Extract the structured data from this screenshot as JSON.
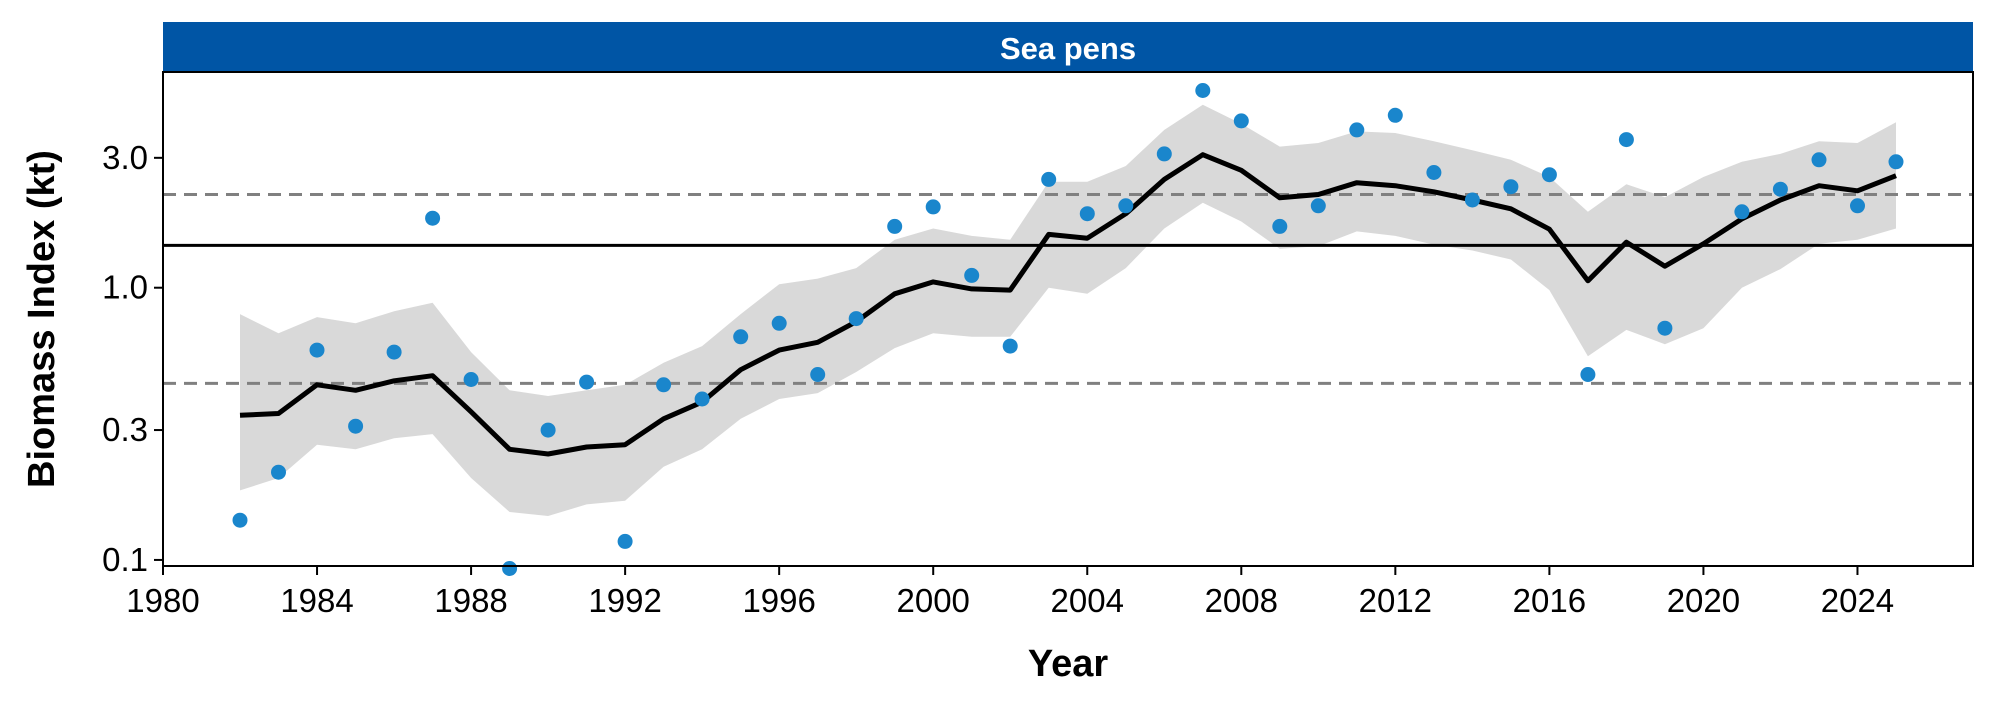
{
  "chart_data": {
    "type": "line",
    "title": "Sea pens",
    "xlabel": "Year",
    "ylabel": "Biomass Index (kt)",
    "y_scale": "log",
    "xlim": [
      1980,
      2027
    ],
    "ylim": [
      0.095,
      6.2
    ],
    "x_ticks": [
      1980,
      1984,
      1988,
      1992,
      1996,
      2000,
      2004,
      2008,
      2012,
      2016,
      2020,
      2024
    ],
    "y_ticks": [
      0.1,
      0.3,
      1.0,
      3.0
    ],
    "y_tick_labels": [
      "0.1",
      "0.3",
      "1.0",
      "3.0"
    ],
    "grid": false,
    "colors": {
      "strip": "#0055A5",
      "points": "#1A86CC",
      "trend": "#000000",
      "ribbon": "#D9D9D9",
      "reference_dashed": "#808080"
    },
    "reference_lines": {
      "solid": 1.43,
      "dashed_upper": 2.2,
      "dashed_lower": 0.445
    },
    "series": [
      {
        "kind": "points",
        "x": [
          1982,
          1983,
          1984,
          1985,
          1986,
          1987,
          1988,
          1989,
          1990,
          1991,
          1992,
          1993,
          1994,
          1995,
          1996,
          1997,
          1998,
          1999,
          2000,
          2001,
          2002,
          2003,
          2004,
          2005,
          2006,
          2007,
          2008,
          2009,
          2010,
          2011,
          2012,
          2013,
          2014,
          2015,
          2016,
          2017,
          2018,
          2019,
          2020,
          2021,
          2022,
          2023,
          2024,
          2025
        ],
        "y": [
          0.14,
          0.21,
          0.59,
          0.31,
          0.58,
          1.8,
          0.46,
          0.093,
          0.3,
          0.45,
          0.117,
          0.44,
          0.39,
          0.66,
          0.74,
          0.48,
          0.77,
          1.68,
          1.98,
          1.11,
          0.61,
          2.5,
          1.87,
          2.0,
          3.1,
          5.3,
          4.1,
          1.68,
          2.0,
          3.8,
          4.3,
          2.65,
          2.1,
          2.35,
          2.6,
          0.48,
          3.5,
          0.71,
          null,
          1.9,
          2.3,
          2.95,
          2.0,
          2.9
        ]
      },
      {
        "kind": "trend",
        "x": [
          1982,
          1983,
          1984,
          1985,
          1986,
          1987,
          1988,
          1989,
          1990,
          1991,
          1992,
          1993,
          1994,
          1995,
          1996,
          1997,
          1998,
          1999,
          2000,
          2001,
          2002,
          2003,
          2004,
          2005,
          2006,
          2007,
          2008,
          2009,
          2010,
          2011,
          2012,
          2013,
          2014,
          2015,
          2016,
          2017,
          2018,
          2019,
          2020,
          2021,
          2022,
          2023,
          2024,
          2025
        ],
        "y": [
          0.34,
          0.345,
          0.44,
          0.42,
          0.455,
          0.475,
          0.35,
          0.255,
          0.245,
          0.26,
          0.265,
          0.33,
          0.38,
          0.5,
          0.59,
          0.63,
          0.75,
          0.95,
          1.05,
          0.99,
          0.98,
          1.57,
          1.52,
          1.87,
          2.5,
          3.08,
          2.7,
          2.14,
          2.2,
          2.43,
          2.37,
          2.25,
          2.1,
          1.95,
          1.64,
          1.06,
          1.47,
          1.2,
          1.45,
          1.79,
          2.1,
          2.37,
          2.27,
          2.58
        ]
      },
      {
        "kind": "ribbon",
        "x": [
          1982,
          1983,
          1984,
          1985,
          1986,
          1987,
          1988,
          1989,
          1990,
          1991,
          1992,
          1993,
          1994,
          1995,
          1996,
          1997,
          1998,
          1999,
          2000,
          2001,
          2002,
          2003,
          2004,
          2005,
          2006,
          2007,
          2008,
          2009,
          2010,
          2011,
          2012,
          2013,
          2014,
          2015,
          2016,
          2017,
          2018,
          2019,
          2020,
          2021,
          2022,
          2023,
          2024,
          2025
        ],
        "lower": [
          0.18,
          0.2,
          0.265,
          0.255,
          0.28,
          0.29,
          0.2,
          0.15,
          0.145,
          0.16,
          0.165,
          0.22,
          0.255,
          0.33,
          0.39,
          0.41,
          0.49,
          0.6,
          0.68,
          0.66,
          0.66,
          1.0,
          0.95,
          1.18,
          1.65,
          2.05,
          1.75,
          1.39,
          1.42,
          1.61,
          1.55,
          1.44,
          1.37,
          1.27,
          0.98,
          0.56,
          0.7,
          0.62,
          0.71,
          1.0,
          1.17,
          1.45,
          1.5,
          1.65
        ],
        "upper": [
          0.8,
          0.68,
          0.78,
          0.74,
          0.82,
          0.88,
          0.58,
          0.42,
          0.4,
          0.42,
          0.44,
          0.53,
          0.61,
          0.8,
          1.03,
          1.08,
          1.18,
          1.5,
          1.65,
          1.55,
          1.5,
          2.45,
          2.45,
          2.8,
          3.8,
          4.7,
          4.0,
          3.3,
          3.4,
          3.75,
          3.7,
          3.45,
          3.2,
          2.95,
          2.55,
          1.9,
          2.4,
          2.15,
          2.55,
          2.9,
          3.1,
          3.45,
          3.4,
          4.05
        ]
      }
    ]
  }
}
